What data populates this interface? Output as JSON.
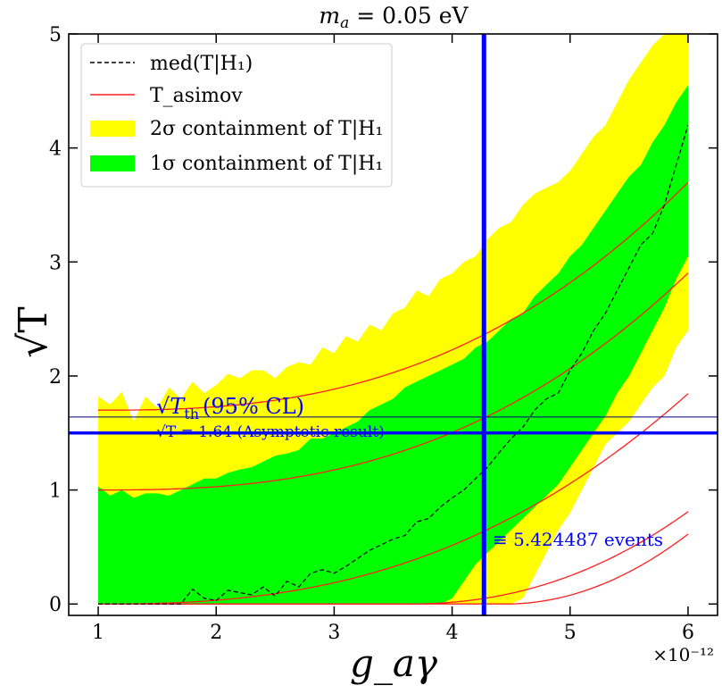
{
  "chart_data": {
    "type": "area",
    "title": "m_a = 0.05 eV",
    "title_parts": {
      "var": "m",
      "sub": "a",
      "rest": " = 0.05 eV"
    },
    "xlabel": "g_aγ",
    "ylabel": "√T",
    "x_multiplier": "×10⁻¹²",
    "xlim": [
      0.75,
      6.25
    ],
    "ylim": [
      -0.1,
      5.0
    ],
    "x_ticks": [
      1,
      2,
      3,
      4,
      5,
      6
    ],
    "y_ticks": [
      0,
      1,
      2,
      3,
      4,
      5
    ],
    "legend_position": "top-left",
    "legend": {
      "median": "med(T|H₁)",
      "asimov": "T_asimov",
      "band2": "2σ containment of T|H₁",
      "band1": "1σ containment of T|H₁"
    },
    "colors": {
      "band2": "#ffff00",
      "band1": "#00ff00",
      "asimov": "#ff2020",
      "median": "#000000",
      "threshold": "#0000ff"
    },
    "x": [
      1.0,
      1.1,
      1.2,
      1.3,
      1.4,
      1.5,
      1.6,
      1.7,
      1.8,
      1.9,
      2.0,
      2.1,
      2.2,
      2.3,
      2.4,
      2.5,
      2.6,
      2.7,
      2.8,
      2.9,
      3.0,
      3.1,
      3.2,
      3.3,
      3.4,
      3.5,
      3.6,
      3.7,
      3.8,
      3.9,
      4.0,
      4.1,
      4.2,
      4.3,
      4.4,
      4.5,
      4.6,
      4.7,
      4.8,
      4.9,
      5.0,
      5.1,
      5.2,
      5.3,
      5.4,
      5.5,
      5.6,
      5.7,
      5.8,
      5.9,
      6.0
    ],
    "series": [
      {
        "name": "2σ containment of T|H₁",
        "role": "band2_upper",
        "values": [
          1.82,
          1.75,
          1.86,
          1.6,
          1.82,
          1.72,
          1.9,
          1.8,
          1.95,
          1.85,
          1.92,
          2.02,
          1.98,
          2.05,
          2.05,
          1.98,
          2.08,
          2.12,
          2.1,
          2.25,
          2.2,
          2.35,
          2.3,
          2.45,
          2.4,
          2.55,
          2.6,
          2.75,
          2.7,
          2.85,
          2.9,
          3.0,
          3.05,
          3.2,
          3.3,
          3.35,
          3.5,
          3.6,
          3.65,
          3.7,
          3.8,
          3.95,
          4.1,
          4.2,
          4.4,
          4.6,
          4.75,
          4.9,
          5.0,
          5.0,
          5.0
        ]
      },
      {
        "name": "2σ containment of T|H₁",
        "role": "band2_lower",
        "values": [
          0.0,
          0.0,
          0.0,
          0.0,
          0.0,
          0.0,
          0.0,
          0.0,
          0.0,
          0.0,
          0.0,
          0.0,
          0.0,
          0.0,
          0.0,
          0.0,
          0.0,
          0.0,
          0.0,
          0.0,
          0.0,
          0.0,
          0.0,
          0.0,
          0.0,
          0.0,
          0.0,
          0.0,
          0.0,
          0.0,
          0.0,
          0.0,
          0.0,
          0.0,
          0.0,
          0.0,
          0.05,
          0.25,
          0.45,
          0.65,
          0.8,
          1.0,
          1.2,
          1.4,
          1.5,
          1.6,
          1.75,
          1.9,
          2.0,
          2.25,
          2.4
        ]
      },
      {
        "name": "1σ containment of T|H₁",
        "role": "band1_upper",
        "values": [
          1.03,
          0.95,
          1.0,
          0.93,
          0.97,
          0.97,
          0.95,
          1.0,
          1.05,
          1.1,
          1.1,
          1.15,
          1.18,
          1.2,
          1.25,
          1.3,
          1.32,
          1.35,
          1.45,
          1.45,
          1.5,
          1.55,
          1.6,
          1.7,
          1.75,
          1.8,
          1.9,
          1.95,
          2.0,
          2.05,
          2.1,
          2.15,
          2.25,
          2.3,
          2.4,
          2.5,
          2.55,
          2.7,
          2.8,
          2.9,
          3.05,
          3.15,
          3.3,
          3.45,
          3.6,
          3.75,
          3.85,
          4.05,
          4.2,
          4.4,
          4.55
        ]
      },
      {
        "name": "1σ containment of T|H₁",
        "role": "band1_lower",
        "values": [
          0.0,
          0.0,
          0.0,
          0.0,
          0.0,
          0.0,
          0.0,
          0.0,
          0.0,
          0.0,
          0.0,
          0.0,
          0.0,
          0.0,
          0.0,
          0.0,
          0.0,
          0.0,
          0.0,
          0.0,
          0.0,
          0.0,
          0.0,
          0.0,
          0.0,
          0.0,
          0.0,
          0.0,
          0.0,
          0.0,
          0.05,
          0.2,
          0.35,
          0.45,
          0.55,
          0.65,
          0.75,
          0.85,
          0.95,
          1.05,
          1.2,
          1.35,
          1.5,
          1.65,
          1.85,
          2.0,
          2.2,
          2.4,
          2.6,
          2.85,
          3.05
        ]
      },
      {
        "name": "med(T|H₁)",
        "role": "median",
        "values": [
          0.0,
          0.0,
          0.0,
          0.0,
          0.0,
          0.0,
          0.0,
          0.0,
          0.13,
          0.05,
          0.03,
          0.12,
          0.1,
          0.08,
          0.15,
          0.07,
          0.2,
          0.15,
          0.27,
          0.3,
          0.27,
          0.33,
          0.4,
          0.47,
          0.52,
          0.57,
          0.6,
          0.72,
          0.75,
          0.85,
          0.93,
          1.0,
          1.1,
          1.2,
          1.33,
          1.45,
          1.55,
          1.7,
          1.8,
          1.85,
          2.05,
          2.2,
          2.4,
          2.55,
          2.75,
          2.95,
          3.15,
          3.25,
          3.5,
          3.85,
          4.2
        ]
      }
    ],
    "asimov_curves": [
      {
        "name": "T_asimov",
        "y0": 0.0,
        "c": 0.12
      },
      {
        "name": "T_asimov",
        "y0": 0.0,
        "c": 0.12
      },
      {
        "name": "T_asimov",
        "y0": 0.0,
        "c": 0.12
      },
      {
        "name": "T_asimov",
        "y0": 0.0,
        "c": 0.12
      },
      {
        "name": "T_asimov",
        "y0": 0.0,
        "c": 0.12
      }
    ],
    "threshold_line": {
      "y": 1.5,
      "label_main": "(95% CL)",
      "label_sub": "th",
      "label_sym": "T"
    },
    "asymptotic_line": {
      "y": 1.64,
      "label": "√T = 1.64 (Asymptotic result)"
    },
    "vertical_line": {
      "x": 4.27,
      "label": "≡ 5.424487 events"
    }
  }
}
